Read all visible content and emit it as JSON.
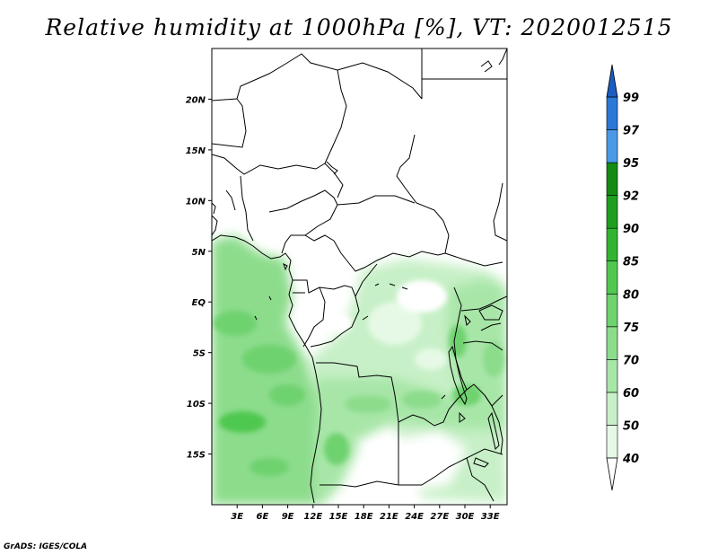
{
  "title": "Relative humidity at 1000hPa [%], VT: 2020012515",
  "credit": "GrADS: IGES/COLA",
  "map": {
    "lon_range": [
      0,
      35
    ],
    "lat_range": [
      -20,
      25
    ],
    "lat_ticks": [
      {
        "value": 20,
        "label": "20N"
      },
      {
        "value": 15,
        "label": "15N"
      },
      {
        "value": 10,
        "label": "10N"
      },
      {
        "value": 5,
        "label": "5N"
      },
      {
        "value": 0,
        "label": "EQ"
      },
      {
        "value": -5,
        "label": "5S"
      },
      {
        "value": -10,
        "label": "10S"
      },
      {
        "value": -15,
        "label": "15S"
      }
    ],
    "lon_ticks": [
      {
        "value": 3,
        "label": "3E"
      },
      {
        "value": 6,
        "label": "6E"
      },
      {
        "value": 9,
        "label": "9E"
      },
      {
        "value": 12,
        "label": "12E"
      },
      {
        "value": 15,
        "label": "15E"
      },
      {
        "value": 18,
        "label": "18E"
      },
      {
        "value": 21,
        "label": "21E"
      },
      {
        "value": 24,
        "label": "24E"
      },
      {
        "value": 27,
        "label": "27E"
      },
      {
        "value": 30,
        "label": "30E"
      },
      {
        "value": 33,
        "label": "33E"
      }
    ]
  },
  "colorbar": {
    "levels": [
      "40",
      "50",
      "60",
      "70",
      "75",
      "80",
      "85",
      "90",
      "92",
      "95",
      "97",
      "99"
    ],
    "colors": [
      "#ffffff",
      "#e6f9e6",
      "#c8f0c8",
      "#a8e6a8",
      "#8cdc8c",
      "#6ed26e",
      "#50c850",
      "#32b432",
      "#1ea01e",
      "#148c14",
      "#4a9ae8",
      "#2a78d8",
      "#1a5cc0"
    ]
  }
}
